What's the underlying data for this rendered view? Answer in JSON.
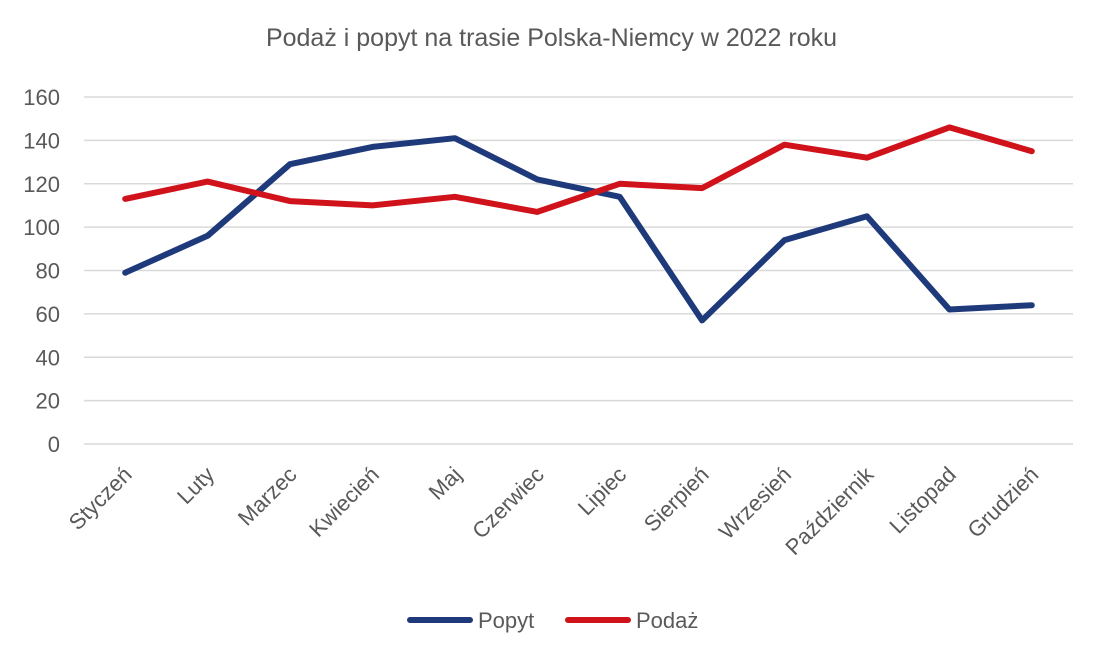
{
  "chart_data": {
    "type": "line",
    "title": "Podaż i popyt na trasie Polska-Niemcy w 2022 roku",
    "xlabel": "",
    "ylabel": "",
    "categories": [
      "Styczeń",
      "Luty",
      "Marzec",
      "Kwiecień",
      "Maj",
      "Czerwiec",
      "Lipiec",
      "Sierpień",
      "Wrzesień",
      "Październik",
      "Listopad",
      "Grudzień"
    ],
    "ylim": [
      0,
      160
    ],
    "yticks": [
      0,
      20,
      40,
      60,
      80,
      100,
      120,
      140,
      160
    ],
    "grid": true,
    "legend_position": "bottom",
    "series": [
      {
        "name": "Popyt",
        "color": "#1f3a7a",
        "values": [
          79,
          96,
          129,
          137,
          141,
          122,
          114,
          57,
          94,
          105,
          62,
          64
        ]
      },
      {
        "name": "Podaż",
        "color": "#d0121b",
        "values": [
          113,
          121,
          112,
          110,
          114,
          107,
          120,
          118,
          138,
          132,
          146,
          135
        ]
      }
    ]
  }
}
